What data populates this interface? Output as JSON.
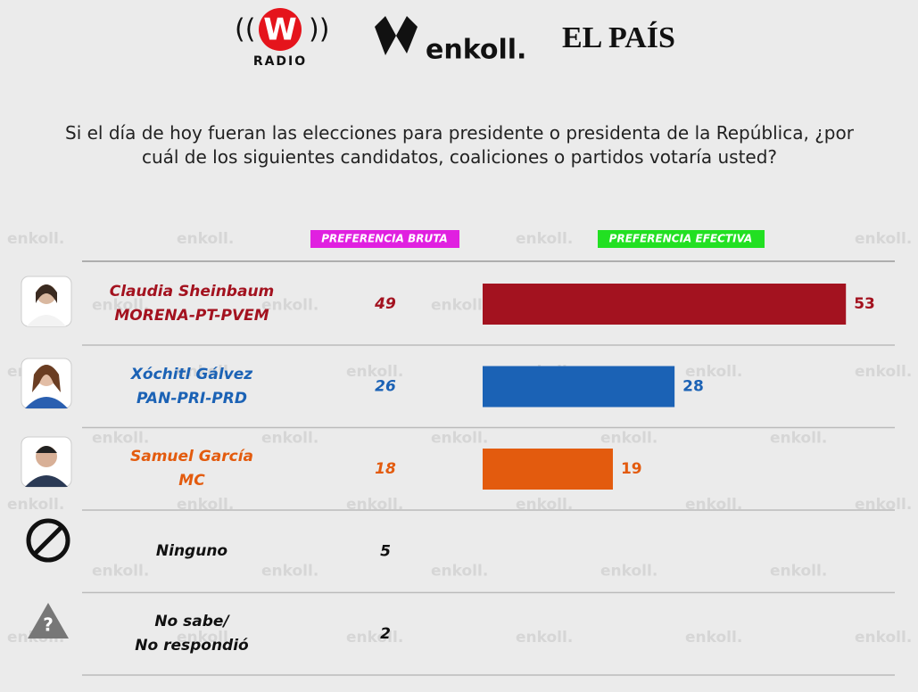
{
  "logos": {
    "radio_mark": "W",
    "radio_name": "RADIO",
    "enkoll": "enkoll.",
    "pais": "EL PAÍS"
  },
  "watermark": "enkoll.",
  "chart_data": {
    "type": "bar",
    "title": "Si el día de hoy fueran las elecciones para presidente o presidenta de la República, ¿por cuál de los siguientes candidatos, coaliciones o partidos votaría usted?",
    "categories": [
      "Claudia Sheinbaum",
      "Xóchitl Gálvez",
      "Samuel García",
      "Ninguno",
      "No sabe/\nNo respondió"
    ],
    "parties": [
      "MORENA-PT-PVEM",
      "PAN-PRI-PRD",
      "MC",
      null,
      null
    ],
    "colors": [
      "#a3121f",
      "#1b62b5",
      "#e35b0e",
      "#111111",
      "#111111"
    ],
    "series": [
      {
        "name": "PREFERENCIA BRUTA",
        "color": "#e020e0",
        "values": [
          49,
          26,
          18,
          5,
          2
        ]
      },
      {
        "name": "PREFERENCIA EFECTIVA",
        "color": "#22e022",
        "values": [
          53,
          28,
          19,
          null,
          null
        ]
      }
    ],
    "xlim": [
      0,
      60
    ]
  }
}
